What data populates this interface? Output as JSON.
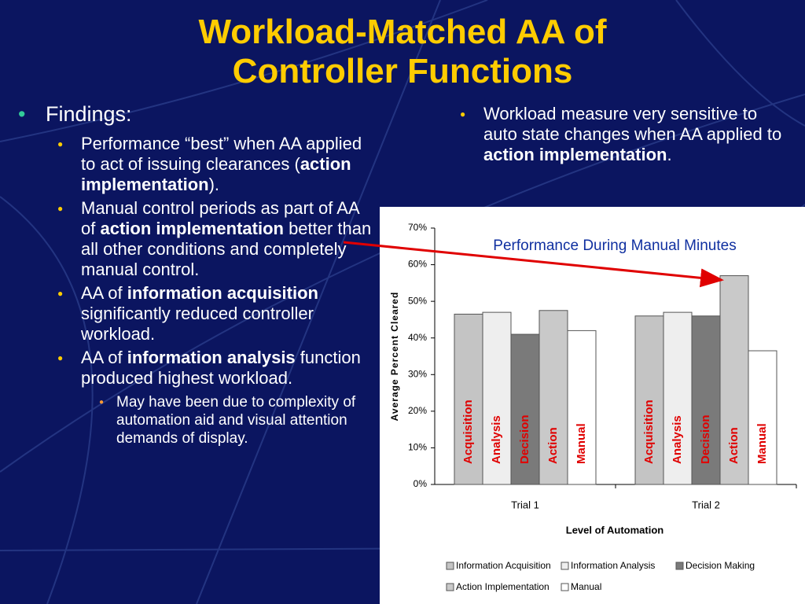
{
  "title_lines": [
    "Workload-Matched AA of",
    "Controller Functions"
  ],
  "left": {
    "heading": "Findings:",
    "items": [
      {
        "runs": [
          {
            "text": "Performance “best” when AA applied to act of issuing clearances (",
            "bold": false
          },
          {
            "text": "action implementation",
            "bold": true
          },
          {
            "text": ").",
            "bold": false
          }
        ]
      },
      {
        "runs": [
          {
            "text": "Manual control periods as part of AA of ",
            "bold": false
          },
          {
            "text": "action implementation",
            "bold": true
          },
          {
            "text": " better than all other conditions and completely manual control.",
            "bold": false
          }
        ]
      },
      {
        "runs": [
          {
            "text": "AA of ",
            "bold": false
          },
          {
            "text": "information acquisition",
            "bold": true
          },
          {
            "text": " significantly reduced controller workload.",
            "bold": false
          }
        ]
      },
      {
        "runs": [
          {
            "text": "AA of ",
            "bold": false
          },
          {
            "text": "information analysis",
            "bold": true
          },
          {
            "text": " function produced highest workload.",
            "bold": false
          }
        ],
        "sub": [
          {
            "runs": [
              {
                "text": "May have been due to complexity of automation aid and visual attention demands of display.",
                "bold": false
              }
            ]
          }
        ]
      }
    ]
  },
  "right": {
    "items": [
      {
        "runs": [
          {
            "text": "Workload measure very sensitive to auto state changes when AA applied to ",
            "bold": false
          },
          {
            "text": "action implementation",
            "bold": true
          },
          {
            "text": ".",
            "bold": false
          }
        ]
      }
    ]
  },
  "chart_data": {
    "type": "bar",
    "title": "Performance During Manual Minutes",
    "x_label": "Level of Automation",
    "y_label": "Average Percent Cleared",
    "categories": [
      "Trial 1",
      "Trial 2"
    ],
    "series": [
      {
        "name": "Information Acquisition",
        "label": "Acquisition",
        "color": "#c4c4c4",
        "values": [
          46.5,
          46
        ]
      },
      {
        "name": "Information Analysis",
        "label": "Analysis",
        "color": "#eeeeee",
        "values": [
          47,
          47
        ]
      },
      {
        "name": "Decision Making",
        "label": "Decision",
        "color": "#7a7a7a",
        "values": [
          41,
          46
        ]
      },
      {
        "name": "Action Implementation",
        "label": "Action",
        "color": "#c9c9c9",
        "values": [
          47.5,
          57
        ]
      },
      {
        "name": "Manual",
        "label": "Manual",
        "color": "#ffffff",
        "values": [
          42,
          36.5
        ]
      }
    ],
    "ylim": [
      0,
      70
    ],
    "yticks": [
      {
        "value": 0,
        "label": "0%"
      },
      {
        "value": 10,
        "label": "10%"
      },
      {
        "value": 20,
        "label": "20%"
      },
      {
        "value": 30,
        "label": "30%"
      },
      {
        "value": 40,
        "label": "40%"
      },
      {
        "value": 50,
        "label": "50%"
      },
      {
        "value": 60,
        "label": "60%"
      },
      {
        "value": 70,
        "label": "70%"
      }
    ],
    "grid": false
  }
}
